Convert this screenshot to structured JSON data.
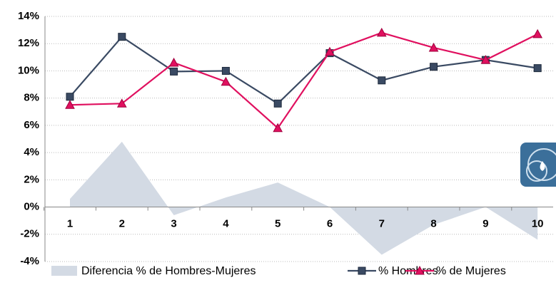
{
  "chart_data": {
    "type": "line",
    "categories": [
      "1",
      "2",
      "3",
      "4",
      "5",
      "6",
      "7",
      "8",
      "9",
      "10"
    ],
    "series": [
      {
        "name": "Diferencia % de Hombres-Mujeres",
        "color": "#d3dae4",
        "kind": "area",
        "values": [
          0.6,
          4.8,
          -0.6,
          0.7,
          1.8,
          0,
          -3.5,
          -1.3,
          0,
          -2.4
        ]
      },
      {
        "name": "% Hombres",
        "color": "#3a4a63",
        "marker": "square",
        "values": [
          8.1,
          12.5,
          9.95,
          10.0,
          7.6,
          11.3,
          9.3,
          10.3,
          10.8,
          10.2
        ]
      },
      {
        "name": "% de Mujeres",
        "color": "#e0105f",
        "marker": "triangle",
        "values": [
          7.5,
          7.6,
          10.6,
          9.2,
          5.8,
          11.4,
          12.8,
          11.7,
          10.8,
          12.7
        ]
      }
    ],
    "ylim": [
      -4,
      14
    ],
    "yticks": [
      {
        "value": -4,
        "label": "-4%"
      },
      {
        "value": -2,
        "label": "-2%"
      },
      {
        "value": 0,
        "label": "0%"
      },
      {
        "value": 2,
        "label": "2%"
      },
      {
        "value": 4,
        "label": "4%"
      },
      {
        "value": 6,
        "label": "6%"
      },
      {
        "value": 8,
        "label": "8%"
      },
      {
        "value": 10,
        "label": "10%"
      },
      {
        "value": 12,
        "label": "12%"
      },
      {
        "value": 14,
        "label": "14%"
      }
    ],
    "grid": true,
    "legend": "bottom"
  }
}
